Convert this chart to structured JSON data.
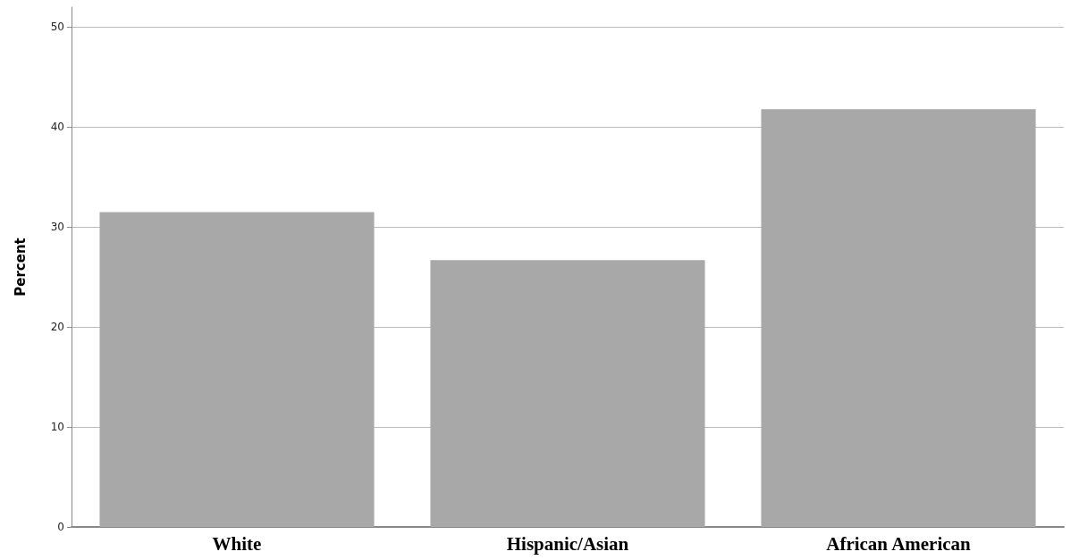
{
  "chart_data": {
    "type": "bar",
    "ylabel": "Percent",
    "categories": [
      "White",
      "Hispanic/Asian",
      "African American"
    ],
    "values": [
      31.5,
      26.7,
      41.8
    ],
    "color": "#a8a8a8",
    "ylim": [
      0,
      52
    ],
    "yticks": [
      0,
      10,
      20,
      30,
      40,
      50
    ],
    "grid": "y"
  }
}
